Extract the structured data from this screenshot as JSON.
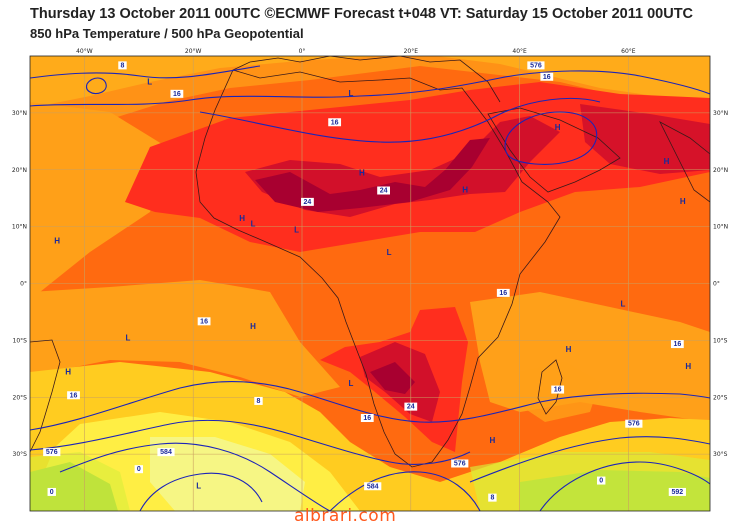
{
  "title_line1": "Thursday 13 October 2011 00UTC ©ECMWF Forecast t+048 VT: Saturday 15 October 2011 00UTC",
  "title_line2": "850 hPa Temperature / 500 hPa Geopotential",
  "watermark": "albrari.com",
  "lon_ticks": [
    "40°W",
    "20°W",
    "0°",
    "20°E",
    "40°E",
    "60°E"
  ],
  "lat_ticks": [
    "30°N",
    "20°N",
    "10°N",
    "0°",
    "10°S",
    "20°S",
    "30°S"
  ],
  "pressure_centres": [
    {
      "type": "L",
      "lon": -28,
      "lat": 35
    },
    {
      "type": "H",
      "lon": -11,
      "lat": 11
    },
    {
      "type": "H",
      "lon": -45,
      "lat": 7
    },
    {
      "type": "L",
      "lon": 9,
      "lat": 33
    },
    {
      "type": "L",
      "lon": -9,
      "lat": 10
    },
    {
      "type": "H",
      "lon": 11,
      "lat": 19
    },
    {
      "type": "L",
      "lon": -1,
      "lat": 9
    },
    {
      "type": "L",
      "lon": 16,
      "lat": 5
    },
    {
      "type": "H",
      "lon": 30,
      "lat": 16
    },
    {
      "type": "H",
      "lon": 47,
      "lat": 27
    },
    {
      "type": "H",
      "lon": 67,
      "lat": 21
    },
    {
      "type": "H",
      "lon": 70,
      "lat": 14
    },
    {
      "type": "H",
      "lon": 71,
      "lat": -15
    },
    {
      "type": "H",
      "lon": -43,
      "lat": -16
    },
    {
      "type": "L",
      "lon": -32,
      "lat": -10
    },
    {
      "type": "H",
      "lon": -9,
      "lat": -8
    },
    {
      "type": "L",
      "lon": 9,
      "lat": -18
    },
    {
      "type": "H",
      "lon": 49,
      "lat": -12
    },
    {
      "type": "L",
      "lon": 59,
      "lat": -4
    },
    {
      "type": "H",
      "lon": 35,
      "lat": -28
    },
    {
      "type": "L",
      "lon": -19,
      "lat": -36
    }
  ],
  "contour_labels": [
    {
      "text": "8",
      "lon": -33,
      "lat": 38
    },
    {
      "text": "16",
      "lon": -23,
      "lat": 33
    },
    {
      "text": "576",
      "lon": 43,
      "lat": 38
    },
    {
      "text": "16",
      "lon": 45,
      "lat": 36
    },
    {
      "text": "16",
      "lon": 6,
      "lat": 28
    },
    {
      "text": "24",
      "lon": 15,
      "lat": 16
    },
    {
      "text": "24",
      "lon": 1,
      "lat": 14
    },
    {
      "text": "16",
      "lon": 37,
      "lat": -2
    },
    {
      "text": "16",
      "lon": -18,
      "lat": -7
    },
    {
      "text": "16",
      "lon": 69,
      "lat": -11
    },
    {
      "text": "16",
      "lon": -42,
      "lat": -20
    },
    {
      "text": "8",
      "lon": -8,
      "lat": -21
    },
    {
      "text": "16",
      "lon": 12,
      "lat": -24
    },
    {
      "text": "24",
      "lon": 20,
      "lat": -22
    },
    {
      "text": "16",
      "lon": 47,
      "lat": -19
    },
    {
      "text": "576",
      "lon": 61,
      "lat": -25
    },
    {
      "text": "576",
      "lon": -46,
      "lat": -30
    },
    {
      "text": "584",
      "lon": -25,
      "lat": -30
    },
    {
      "text": "576",
      "lon": 29,
      "lat": -32
    },
    {
      "text": "0",
      "lon": -30,
      "lat": -33
    },
    {
      "text": "0",
      "lon": 55,
      "lat": -35
    },
    {
      "text": "584",
      "lon": 13,
      "lat": -36
    },
    {
      "text": "8",
      "lon": 35,
      "lat": -38
    },
    {
      "text": "592",
      "lon": 69,
      "lat": -37
    },
    {
      "text": "0",
      "lon": -46,
      "lat": -37
    }
  ],
  "colors": {
    "warm_24": "#a80030",
    "warm_20": "#d2102a",
    "warm_16": "#ff2e1e",
    "warm_12": "#ff6a10",
    "warm_8": "#ffa018",
    "warm_4": "#ffcc20",
    "cool_0": "#ffee44",
    "cool_m4": "#f6f684",
    "cool_m8": "#d8ee3a",
    "cold": "#9ad23c",
    "contour": "#1c24b8",
    "coast": "#3a1a1a",
    "grid": "#caa060"
  }
}
